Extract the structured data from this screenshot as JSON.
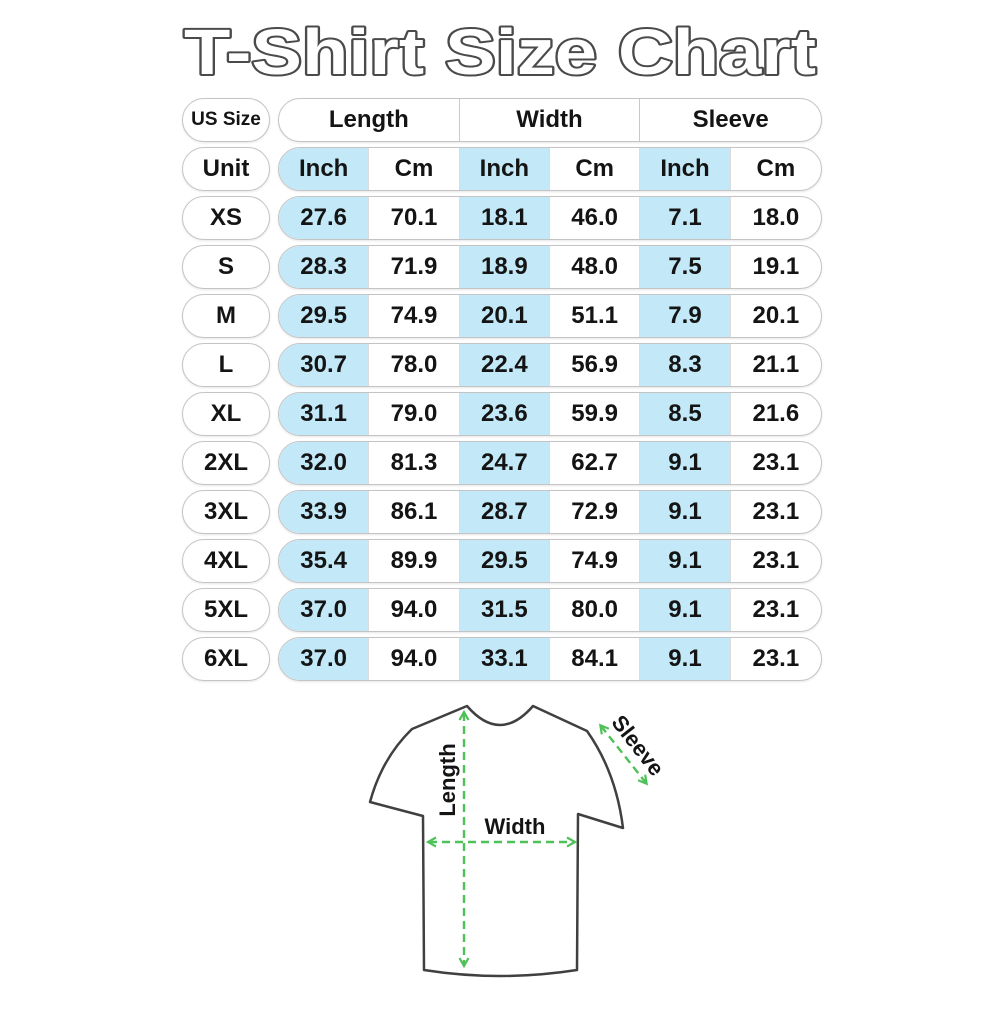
{
  "title": "T-Shirt Size Chart",
  "chart_data": {
    "type": "table",
    "corner_label": "US Size",
    "unit_label": "Unit",
    "column_groups": [
      "Length",
      "Width",
      "Sleeve"
    ],
    "unit_headers": [
      "Inch",
      "Cm",
      "Inch",
      "Cm",
      "Inch",
      "Cm"
    ],
    "rows": [
      {
        "size": "XS",
        "values": [
          "27.6",
          "70.1",
          "18.1",
          "46.0",
          "7.1",
          "18.0"
        ]
      },
      {
        "size": "S",
        "values": [
          "28.3",
          "71.9",
          "18.9",
          "48.0",
          "7.5",
          "19.1"
        ]
      },
      {
        "size": "M",
        "values": [
          "29.5",
          "74.9",
          "20.1",
          "51.1",
          "7.9",
          "20.1"
        ]
      },
      {
        "size": "L",
        "values": [
          "30.7",
          "78.0",
          "22.4",
          "56.9",
          "8.3",
          "21.1"
        ]
      },
      {
        "size": "XL",
        "values": [
          "31.1",
          "79.0",
          "23.6",
          "59.9",
          "8.5",
          "21.6"
        ]
      },
      {
        "size": "2XL",
        "values": [
          "32.0",
          "81.3",
          "24.7",
          "62.7",
          "9.1",
          "23.1"
        ]
      },
      {
        "size": "3XL",
        "values": [
          "33.9",
          "86.1",
          "28.7",
          "72.9",
          "9.1",
          "23.1"
        ]
      },
      {
        "size": "4XL",
        "values": [
          "35.4",
          "89.9",
          "29.5",
          "74.9",
          "9.1",
          "23.1"
        ]
      },
      {
        "size": "5XL",
        "values": [
          "37.0",
          "94.0",
          "31.5",
          "80.0",
          "9.1",
          "23.1"
        ]
      },
      {
        "size": "6XL",
        "values": [
          "37.0",
          "94.0",
          "33.1",
          "84.1",
          "9.1",
          "23.1"
        ]
      }
    ]
  },
  "diagram": {
    "length_label": "Length",
    "width_label": "Width",
    "sleeve_label": "Sleeve"
  },
  "colors": {
    "inch_highlight": "#c3e9f8",
    "arrow_green": "#4ec158",
    "pill_border": "#c4c4c4",
    "title_outline": "#4a4a4a",
    "shirt_outline": "#404040",
    "text": "#141414"
  }
}
